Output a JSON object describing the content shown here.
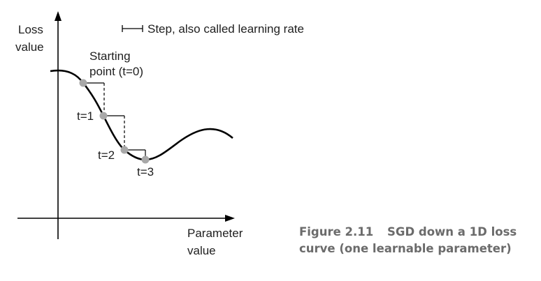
{
  "axes": {
    "y_label_line1": "Loss",
    "y_label_line2": "value",
    "x_label_line1": "Parameter",
    "x_label_line2": "value"
  },
  "legend": {
    "step_text": "Step, also called learning rate"
  },
  "points": {
    "start_line1": "Starting",
    "start_line2": "point (t=0)",
    "t1": "t=1",
    "t2": "t=2",
    "t3": "t=3"
  },
  "caption": {
    "line1_prefix": "Figure 2.11",
    "line1_rest": "SGD down a 1D loss",
    "line2": "curve (one learnable parameter)"
  },
  "colors": {
    "curve": "#000000",
    "point_fill": "#a8a8a8",
    "caption": "#6b6b6b"
  }
}
